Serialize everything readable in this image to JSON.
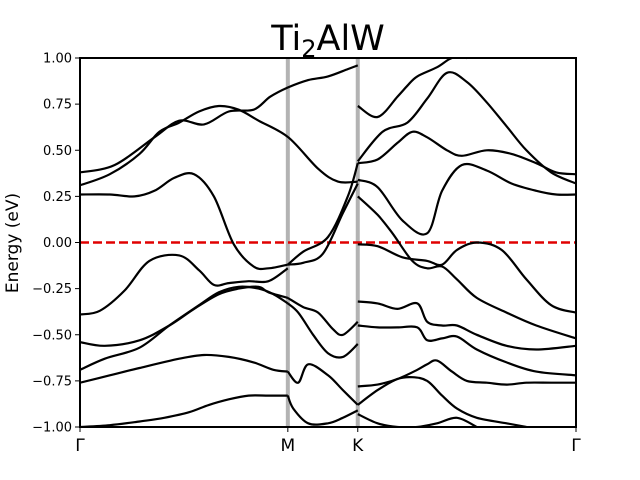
{
  "chart_data": {
    "type": "line",
    "title_main": "Ti",
    "title_sub": "2",
    "title_rest": "AlW",
    "ylabel": "Energy (eV)",
    "ylim": [
      -1.0,
      1.0
    ],
    "yticks": [
      "1.00",
      "0.75",
      "0.50",
      "0.25",
      "0.00",
      "−0.25",
      "−0.50",
      "−0.75",
      "−1.00"
    ],
    "ytick_values": [
      1.0,
      0.75,
      0.5,
      0.25,
      0.0,
      -0.25,
      -0.5,
      -0.75,
      -1.0
    ],
    "xlim": [
      0,
      1
    ],
    "kpoints": [
      {
        "label": "Γ",
        "x": 0.0
      },
      {
        "label": "M",
        "x": 0.419
      },
      {
        "label": "K",
        "x": 0.56
      },
      {
        "label": "Γ",
        "x": 1.0
      }
    ],
    "fermi_level": 0.0,
    "colors": {
      "bands": "#000000",
      "fermi": "#e00000",
      "kline": "#b3b3b3"
    },
    "series": [
      {
        "x": [
          0,
          0.07,
          0.15,
          0.2,
          0.25,
          0.3,
          0.35,
          0.3834,
          0.419,
          0.46,
          0.5,
          0.54,
          0.56
        ],
        "y": [
          0.38,
          0.42,
          0.57,
          0.66,
          0.64,
          0.71,
          0.72,
          0.79,
          0.84,
          0.88,
          0.9,
          0.94,
          0.96
        ]
      },
      {
        "x": [
          0,
          0.06,
          0.12,
          0.16,
          0.2,
          0.24,
          0.28,
          0.32,
          0.36,
          0.42,
          0.48,
          0.52,
          0.56
        ],
        "y": [
          0.31,
          0.37,
          0.48,
          0.6,
          0.65,
          0.71,
          0.74,
          0.72,
          0.66,
          0.57,
          0.4,
          0.33,
          0.33
        ]
      },
      {
        "x": [
          0,
          0.06,
          0.11,
          0.15,
          0.19,
          0.23,
          0.27,
          0.31,
          0.35,
          0.38,
          0.419
        ],
        "y": [
          0.26,
          0.26,
          0.25,
          0.28,
          0.35,
          0.37,
          0.25,
          -0.01,
          -0.13,
          -0.14,
          -0.12
        ]
      },
      {
        "x": [
          0,
          0.04,
          0.09,
          0.14,
          0.2,
          0.24,
          0.27,
          0.3,
          0.34,
          0.38,
          0.419
        ],
        "y": [
          -0.39,
          -0.37,
          -0.26,
          -0.1,
          -0.07,
          -0.15,
          -0.23,
          -0.22,
          -0.21,
          -0.21,
          -0.14
        ]
      },
      {
        "x": [
          0.419,
          0.45,
          0.5,
          0.54,
          0.56
        ],
        "y": [
          -0.12,
          -0.05,
          0.03,
          0.25,
          0.43
        ]
      },
      {
        "x": [
          0.419,
          0.45,
          0.49,
          0.53,
          0.56
        ],
        "y": [
          -0.12,
          -0.11,
          -0.06,
          0.16,
          0.32
        ]
      },
      {
        "x": [
          0,
          0.05,
          0.12,
          0.18,
          0.23,
          0.28,
          0.32,
          0.36,
          0.38,
          0.419
        ],
        "y": [
          -0.54,
          -0.56,
          -0.53,
          -0.45,
          -0.36,
          -0.28,
          -0.25,
          -0.24,
          -0.27,
          -0.3
        ]
      },
      {
        "x": [
          0,
          0.05,
          0.12,
          0.18,
          0.24,
          0.28,
          0.32,
          0.36,
          0.39,
          0.419
        ],
        "y": [
          -0.69,
          -0.63,
          -0.57,
          -0.45,
          -0.34,
          -0.27,
          -0.24,
          -0.25,
          -0.28,
          -0.33
        ]
      },
      {
        "x": [
          0,
          0.06,
          0.12,
          0.2,
          0.25,
          0.3,
          0.35,
          0.39,
          0.419
        ],
        "y": [
          -0.76,
          -0.72,
          -0.68,
          -0.63,
          -0.61,
          -0.62,
          -0.65,
          -0.69,
          -0.7
        ]
      },
      {
        "x": [
          0.419,
          0.45,
          0.48,
          0.51,
          0.53,
          0.56
        ],
        "y": [
          -0.3,
          -0.35,
          -0.38,
          -0.47,
          -0.5,
          -0.43
        ]
      },
      {
        "x": [
          0.419,
          0.44,
          0.47,
          0.5,
          0.53,
          0.56
        ],
        "y": [
          -0.33,
          -0.38,
          -0.5,
          -0.6,
          -0.62,
          -0.55
        ]
      },
      {
        "x": [
          0.419,
          0.44,
          0.46,
          0.5,
          0.53,
          0.56
        ],
        "y": [
          -0.7,
          -0.76,
          -0.66,
          -0.72,
          -0.8,
          -0.88
        ]
      },
      {
        "x": [
          0,
          0.06,
          0.12,
          0.17,
          0.22,
          0.26,
          0.3,
          0.34,
          0.38,
          0.419
        ],
        "y": [
          -1.0,
          -0.99,
          -0.97,
          -0.95,
          -0.92,
          -0.88,
          -0.85,
          -0.83,
          -0.83,
          -0.83
        ]
      },
      {
        "x": [
          0.419,
          0.43,
          0.46,
          0.5,
          0.53,
          0.56
        ],
        "y": [
          -0.83,
          -0.9,
          -0.98,
          -0.98,
          -0.95,
          -0.91
        ]
      },
      {
        "x": [
          0.56,
          0.6,
          0.65,
          0.7,
          0.73,
          0.77,
          0.82,
          0.87,
          0.92,
          0.96,
          1.0
        ],
        "y": [
          0.34,
          0.3,
          0.12,
          0.05,
          0.28,
          0.42,
          0.39,
          0.32,
          0.28,
          0.26,
          0.26
        ]
      },
      {
        "x": [
          0.56,
          0.6,
          0.64,
          0.67,
          0.7,
          0.74,
          0.77,
          0.82,
          0.87,
          0.92,
          0.96,
          1.0
        ],
        "y": [
          0.43,
          0.45,
          0.54,
          0.6,
          0.57,
          0.5,
          0.47,
          0.5,
          0.48,
          0.43,
          0.38,
          0.37
        ]
      },
      {
        "x": [
          0.56,
          0.61,
          0.66,
          0.7,
          0.74,
          0.78,
          0.82,
          0.86,
          0.9,
          0.95,
          1.0
        ],
        "y": [
          0.44,
          0.6,
          0.65,
          0.78,
          0.92,
          0.87,
          0.76,
          0.63,
          0.5,
          0.38,
          0.32
        ]
      },
      {
        "x": [
          0.56,
          0.6,
          0.64,
          0.66,
          0.68,
          0.72,
          0.75,
          0.78
        ],
        "y": [
          0.74,
          0.68,
          0.79,
          0.85,
          0.9,
          0.95,
          1.0,
          1.0
        ]
      },
      {
        "x": [
          0.56,
          0.6,
          0.65,
          0.7,
          0.73,
          0.76,
          0.8,
          0.85,
          0.9,
          0.95,
          1.0
        ],
        "y": [
          -0.01,
          -0.02,
          -0.08,
          -0.1,
          -0.12,
          -0.04,
          0.0,
          -0.04,
          -0.2,
          -0.34,
          -0.38
        ]
      },
      {
        "x": [
          0.56,
          0.6,
          0.63,
          0.67,
          0.7,
          0.73,
          0.76,
          0.8,
          0.86,
          0.92,
          1.0
        ],
        "y": [
          0.25,
          0.15,
          0.05,
          -0.1,
          -0.14,
          -0.13,
          -0.2,
          -0.3,
          -0.38,
          -0.45,
          -0.52
        ]
      },
      {
        "x": [
          0.56,
          0.6,
          0.64,
          0.68,
          0.7,
          0.73,
          0.76,
          0.8,
          0.86,
          0.92,
          1.0
        ],
        "y": [
          -0.32,
          -0.33,
          -0.36,
          -0.33,
          -0.43,
          -0.45,
          -0.45,
          -0.5,
          -0.56,
          -0.58,
          -0.56
        ]
      },
      {
        "x": [
          0.56,
          0.6,
          0.64,
          0.68,
          0.7,
          0.73,
          0.76,
          0.8,
          0.86,
          0.92,
          1.0
        ],
        "y": [
          -0.45,
          -0.46,
          -0.46,
          -0.46,
          -0.53,
          -0.52,
          -0.51,
          -0.58,
          -0.65,
          -0.7,
          -0.72
        ]
      },
      {
        "x": [
          0.56,
          0.6,
          0.64,
          0.68,
          0.7,
          0.72,
          0.75,
          0.78,
          0.82,
          0.86,
          0.9,
          0.95,
          1.0
        ],
        "y": [
          -0.78,
          -0.77,
          -0.74,
          -0.69,
          -0.66,
          -0.64,
          -0.7,
          -0.75,
          -0.76,
          -0.77,
          -0.76,
          -0.76,
          -0.76
        ]
      },
      {
        "x": [
          0.56,
          0.6,
          0.64,
          0.67,
          0.7,
          0.73,
          0.76,
          0.8,
          0.86,
          0.9
        ],
        "y": [
          -0.88,
          -0.8,
          -0.74,
          -0.73,
          -0.75,
          -0.83,
          -0.9,
          -0.95,
          -0.98,
          -1.0
        ]
      },
      {
        "x": [
          0.56,
          0.6,
          0.64,
          0.68,
          0.72,
          0.76,
          0.8
        ],
        "y": [
          -0.93,
          -0.98,
          -1.0,
          -1.0,
          -0.98,
          -0.95,
          -1.0
        ]
      }
    ]
  }
}
